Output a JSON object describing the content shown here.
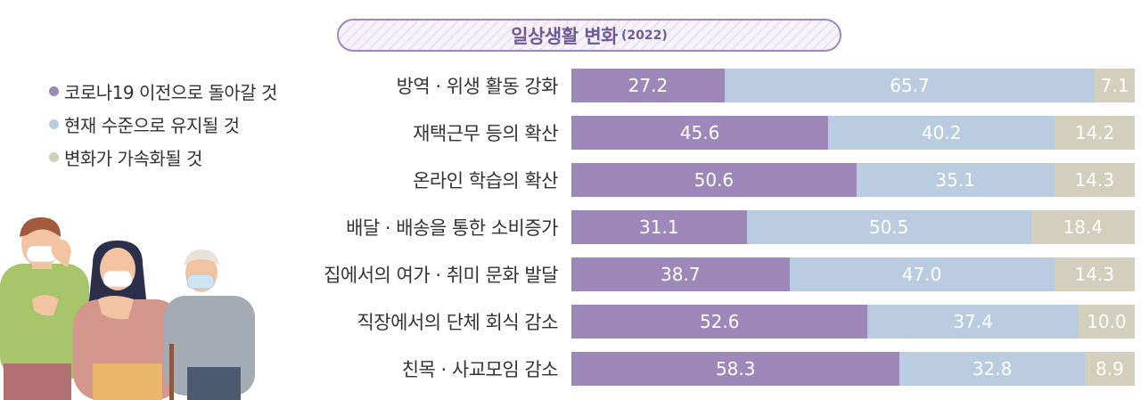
{
  "title": {
    "main": "일상생활 변화",
    "year": "(2022)"
  },
  "colors": {
    "series1": "#9e88b9",
    "series2": "#b9cce0",
    "series3": "#d2cfbd"
  },
  "chart_data": {
    "type": "bar",
    "orientation": "horizontal",
    "stacked": true,
    "title": "일상생활 변화 (2022)",
    "xlim": [
      0,
      100
    ],
    "legend_position": "top-left",
    "categories": [
      "방역 · 위생 활동 강화",
      "재택근무 등의 확산",
      "온라인 학습의 확산",
      "배달 · 배송을 통한 소비증가",
      "집에서의 여가 · 취미 문화 발달",
      "직장에서의 단체 회식 감소",
      "친목 · 사교모임 감소"
    ],
    "series": [
      {
        "name": "코로나19 이전으로 돌아갈 것",
        "color": "#9e88b9",
        "values": [
          27.2,
          45.6,
          50.6,
          31.1,
          38.7,
          52.6,
          58.3
        ]
      },
      {
        "name": "현재 수준으로 유지될 것",
        "color": "#b9cce0",
        "values": [
          65.7,
          40.2,
          35.1,
          50.5,
          47.0,
          37.4,
          32.8
        ]
      },
      {
        "name": "변화가 가속화될 것",
        "color": "#d2cfbd",
        "values": [
          7.1,
          14.2,
          14.3,
          18.4,
          14.3,
          10.0,
          8.9
        ]
      }
    ]
  }
}
